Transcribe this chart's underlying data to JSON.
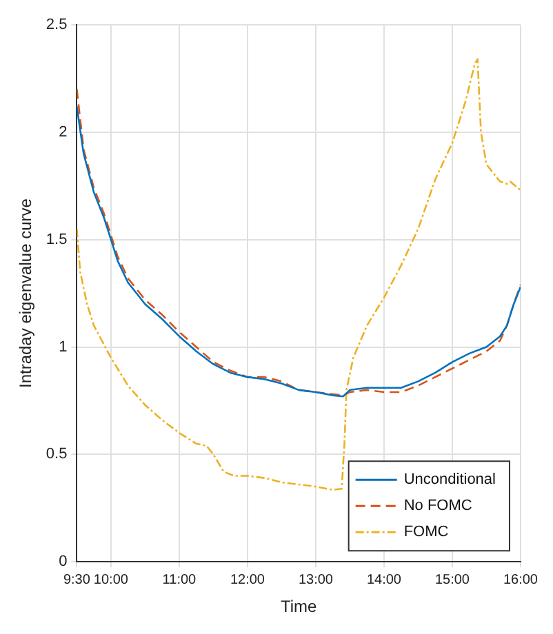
{
  "chart_data": {
    "type": "line",
    "xlabel": "Time",
    "ylabel": "Intraday eigenvalue curve",
    "xlim": [
      9.5,
      16
    ],
    "xticks": [
      {
        "value": 9.5,
        "label": "9:30"
      },
      {
        "value": 10,
        "label": "10:00"
      },
      {
        "value": 11,
        "label": "11:00"
      },
      {
        "value": 12,
        "label": "12:00"
      },
      {
        "value": 13,
        "label": "13:00"
      },
      {
        "value": 14,
        "label": "14:00"
      },
      {
        "value": 15,
        "label": "15:00"
      },
      {
        "value": 16,
        "label": "16:00"
      }
    ],
    "ylim": [
      0,
      2.5
    ],
    "yticks": [
      0,
      0.5,
      1,
      1.5,
      2,
      2.5
    ],
    "grid": true,
    "legend": "bottom right",
    "marker": "none",
    "series": [
      {
        "name": "Unconditional",
        "color": "#0072bd",
        "line_style": "solid",
        "x": [
          9.5,
          9.6,
          9.75,
          9.9,
          10,
          10.1,
          10.25,
          10.5,
          10.75,
          11,
          11.25,
          11.5,
          11.75,
          12,
          12.25,
          12.5,
          12.75,
          13,
          13.25,
          13.4,
          13.5,
          13.75,
          14,
          14.25,
          14.5,
          14.75,
          15,
          15.25,
          15.5,
          15.7,
          15.8,
          15.9,
          16
        ],
        "values": [
          2.12,
          1.9,
          1.72,
          1.6,
          1.5,
          1.4,
          1.3,
          1.2,
          1.13,
          1.05,
          0.98,
          0.92,
          0.88,
          0.86,
          0.85,
          0.83,
          0.8,
          0.79,
          0.775,
          0.77,
          0.8,
          0.81,
          0.81,
          0.81,
          0.84,
          0.88,
          0.93,
          0.97,
          1.0,
          1.05,
          1.1,
          1.2,
          1.28
        ]
      },
      {
        "name": "No FOMC",
        "color": "#d95319",
        "line_style": "dashed",
        "x": [
          9.5,
          9.6,
          9.75,
          9.9,
          10,
          10.1,
          10.25,
          10.5,
          10.75,
          11,
          11.25,
          11.5,
          11.75,
          12,
          12.25,
          12.5,
          12.75,
          13,
          13.25,
          13.4,
          13.5,
          13.75,
          14,
          14.25,
          14.5,
          14.75,
          15,
          15.25,
          15.5,
          15.7,
          15.8,
          15.9,
          16
        ],
        "values": [
          2.2,
          1.92,
          1.74,
          1.62,
          1.52,
          1.42,
          1.32,
          1.22,
          1.15,
          1.07,
          1.0,
          0.93,
          0.89,
          0.86,
          0.86,
          0.84,
          0.8,
          0.79,
          0.78,
          0.775,
          0.79,
          0.8,
          0.79,
          0.79,
          0.82,
          0.86,
          0.9,
          0.94,
          0.98,
          1.03,
          1.1,
          1.2,
          1.29
        ]
      },
      {
        "name": "FOMC",
        "color": "#edb120",
        "line_style": "dotted",
        "x": [
          9.5,
          9.55,
          9.65,
          9.75,
          10,
          10.25,
          10.5,
          10.75,
          11,
          11.25,
          11.4,
          11.5,
          11.65,
          11.8,
          12,
          12.25,
          12.5,
          12.75,
          13,
          13.25,
          13.38,
          13.42,
          13.45,
          13.55,
          13.75,
          14,
          14.25,
          14.5,
          14.75,
          15,
          15.2,
          15.33,
          15.37,
          15.42,
          15.5,
          15.7,
          15.8,
          15.85,
          16
        ],
        "values": [
          1.55,
          1.35,
          1.2,
          1.1,
          0.95,
          0.82,
          0.73,
          0.66,
          0.6,
          0.55,
          0.54,
          0.5,
          0.42,
          0.4,
          0.4,
          0.39,
          0.37,
          0.36,
          0.35,
          0.335,
          0.34,
          0.55,
          0.8,
          0.95,
          1.1,
          1.23,
          1.38,
          1.55,
          1.78,
          1.95,
          2.15,
          2.32,
          2.34,
          2.0,
          1.85,
          1.77,
          1.76,
          1.77,
          1.73
        ]
      }
    ]
  }
}
